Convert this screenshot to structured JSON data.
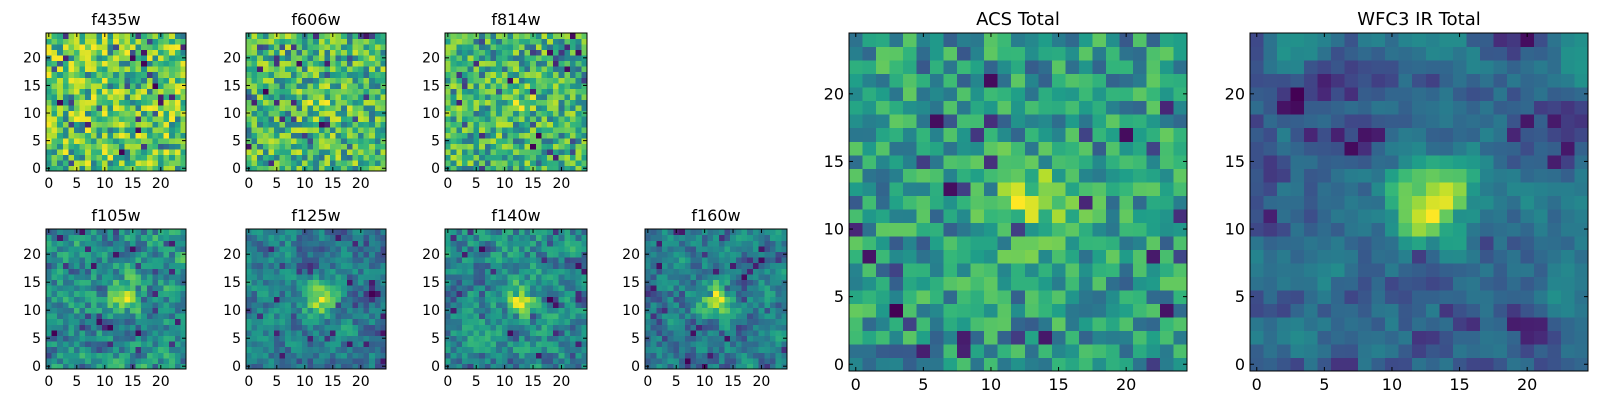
{
  "chart_data": [
    {
      "type": "heatmap",
      "title": "f435w",
      "xticks": [
        0,
        5,
        10,
        15,
        20
      ],
      "yticks": [
        0,
        5,
        10,
        15,
        20
      ],
      "xlim": [
        -0.5,
        24.5
      ],
      "ylim": [
        -0.5,
        24.5
      ],
      "grid_size": 25,
      "colormap": "viridis",
      "seed": 11,
      "blob": {
        "x": 12,
        "y": 12,
        "strength": 0.0
      },
      "smooth": 0
    },
    {
      "type": "heatmap",
      "title": "f606w",
      "xticks": [
        0,
        5,
        10,
        15,
        20
      ],
      "yticks": [
        0,
        5,
        10,
        15,
        20
      ],
      "xlim": [
        -0.5,
        24.5
      ],
      "ylim": [
        -0.5,
        24.5
      ],
      "grid_size": 25,
      "colormap": "viridis",
      "seed": 23,
      "blob": {
        "x": 13,
        "y": 12,
        "strength": 0.15
      },
      "smooth": 0
    },
    {
      "type": "heatmap",
      "title": "f814w",
      "xticks": [
        0,
        5,
        10,
        15,
        20
      ],
      "yticks": [
        0,
        5,
        10,
        15,
        20
      ],
      "xlim": [
        -0.5,
        24.5
      ],
      "ylim": [
        -0.5,
        24.5
      ],
      "grid_size": 25,
      "colormap": "viridis",
      "seed": 37,
      "blob": {
        "x": 13,
        "y": 12,
        "strength": 0.15
      },
      "smooth": 0
    },
    {
      "type": "heatmap",
      "title": "f105w",
      "xticks": [
        0,
        5,
        10,
        15,
        20
      ],
      "yticks": [
        0,
        5,
        10,
        15,
        20
      ],
      "xlim": [
        -0.5,
        24.5
      ],
      "ylim": [
        -0.5,
        24.5
      ],
      "grid_size": 25,
      "colormap": "viridis",
      "seed": 41,
      "blob": {
        "x": 14,
        "y": 13,
        "strength": 0.35
      },
      "smooth": 1
    },
    {
      "type": "heatmap",
      "title": "f125w",
      "xticks": [
        0,
        5,
        10,
        15,
        20
      ],
      "yticks": [
        0,
        5,
        10,
        15,
        20
      ],
      "xlim": [
        -0.5,
        24.5
      ],
      "ylim": [
        -0.5,
        24.5
      ],
      "grid_size": 25,
      "colormap": "viridis",
      "seed": 53,
      "blob": {
        "x": 13,
        "y": 12,
        "strength": 0.5
      },
      "smooth": 1
    },
    {
      "type": "heatmap",
      "title": "f140w",
      "xticks": [
        0,
        5,
        10,
        15,
        20
      ],
      "yticks": [
        0,
        5,
        10,
        15,
        20
      ],
      "xlim": [
        -0.5,
        24.5
      ],
      "ylim": [
        -0.5,
        24.5
      ],
      "grid_size": 25,
      "colormap": "viridis",
      "seed": 67,
      "blob": {
        "x": 13,
        "y": 12,
        "strength": 0.35
      },
      "smooth": 1
    },
    {
      "type": "heatmap",
      "title": "f160w",
      "xticks": [
        0,
        5,
        10,
        15,
        20
      ],
      "yticks": [
        0,
        5,
        10,
        15,
        20
      ],
      "xlim": [
        -0.5,
        24.5
      ],
      "ylim": [
        -0.5,
        24.5
      ],
      "grid_size": 25,
      "colormap": "viridis",
      "seed": 79,
      "blob": {
        "x": 12,
        "y": 12,
        "strength": 0.5
      },
      "smooth": 1
    },
    {
      "type": "heatmap",
      "title": "ACS Total",
      "xticks": [
        0,
        5,
        10,
        15,
        20
      ],
      "yticks": [
        0,
        5,
        10,
        15,
        20
      ],
      "xlim": [
        -0.5,
        24.5
      ],
      "ylim": [
        -0.5,
        24.5
      ],
      "grid_size": 25,
      "colormap": "viridis",
      "seed": 97,
      "blob": {
        "x": 13,
        "y": 12,
        "strength": 0.4
      },
      "smooth": 0
    },
    {
      "type": "heatmap",
      "title": "WFC3 IR Total",
      "xticks": [
        0,
        5,
        10,
        15,
        20
      ],
      "yticks": [
        0,
        5,
        10,
        15,
        20
      ],
      "xlim": [
        -0.5,
        24.5
      ],
      "ylim": [
        -0.5,
        24.5
      ],
      "grid_size": 25,
      "colormap": "viridis",
      "seed": 113,
      "blob": {
        "x": 13,
        "y": 12,
        "strength": 0.6
      },
      "smooth": 2
    }
  ]
}
